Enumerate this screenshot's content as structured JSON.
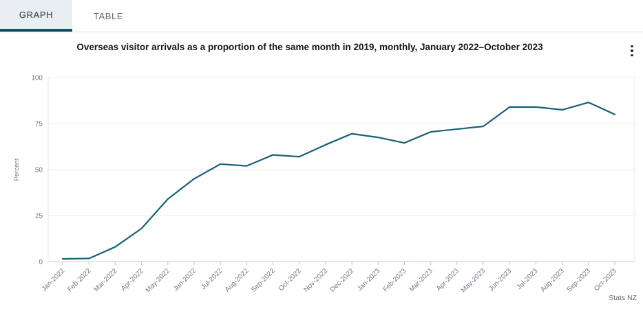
{
  "tabs": {
    "graph": "GRAPH",
    "table": "TABLE"
  },
  "header": {
    "title": "Overseas visitor arrivals as a proportion of the same month in 2019, monthly, January 2022–October 2023",
    "menu_icon": "kebab-menu-icon"
  },
  "source": "Stats NZ",
  "colors": {
    "line": "#156177",
    "tab_underline": "#0e5162",
    "tab_active_bg": "#e9eef1",
    "grid": "#ebebeb",
    "plot_border": "#e2e6e9",
    "axis_line": "#c9d2d8",
    "tick_mark": "#b9c6cf",
    "muted_text": "#6f7781"
  },
  "chart_data": {
    "type": "line",
    "title": "Overseas visitor arrivals as a proportion of the same month in 2019, monthly, January 2022–October 2023",
    "xlabel": "",
    "ylabel": "Percent",
    "ylim": [
      0,
      100
    ],
    "yticks": [
      0,
      25,
      50,
      75,
      100
    ],
    "grid": true,
    "legend": false,
    "categories": [
      "Jan-2022",
      "Feb-2022",
      "Mar-2022",
      "Apr-2022",
      "May-2022",
      "Jun-2022",
      "Jul-2022",
      "Aug-2022",
      "Sep-2022",
      "Oct-2022",
      "Nov-2022",
      "Dec-2022",
      "Jan-2023",
      "Feb-2023",
      "Mar-2023",
      "Apr-2023",
      "May-2023",
      "Jun-2023",
      "Jul-2023",
      "Aug-2023",
      "Sep-2023",
      "Oct-2023"
    ],
    "series": [
      {
        "name": "Overseas visitor arrivals as a proportion of the same month in 2019",
        "values": [
          1.5,
          1.7,
          8,
          18,
          34,
          45,
          53,
          52,
          58,
          57,
          63.5,
          69.5,
          67.5,
          64.5,
          70.5,
          72,
          73.5,
          84,
          84,
          82.5,
          86.5,
          80
        ]
      }
    ]
  }
}
